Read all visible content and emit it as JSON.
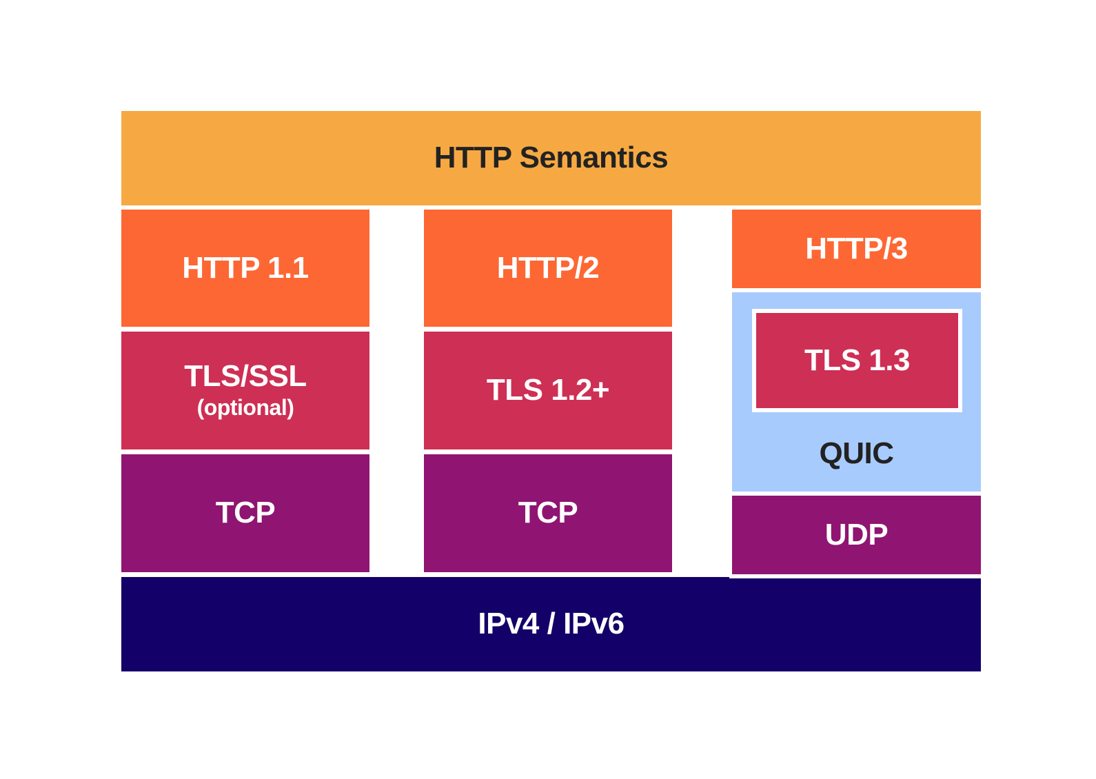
{
  "colors": {
    "semantics": "#F6A942",
    "http_version": "#FD6734",
    "tls": "#CE2F54",
    "transport": "#901472",
    "quic": "#A8CBFD",
    "ip": "#130068",
    "dark_text": "#222222",
    "light_text": "#ffffff"
  },
  "layers": {
    "semantics": "HTTP Semantics",
    "ip": "IPv4 / IPv6"
  },
  "columns": [
    {
      "http": "HTTP 1.1",
      "security": "TLS/SSL",
      "security_note": "(optional)",
      "transport": "TCP"
    },
    {
      "http": "HTTP/2",
      "security": "TLS 1.2+",
      "transport": "TCP"
    },
    {
      "http": "HTTP/3",
      "security": "TLS 1.3",
      "container": "QUIC",
      "transport": "UDP"
    }
  ]
}
